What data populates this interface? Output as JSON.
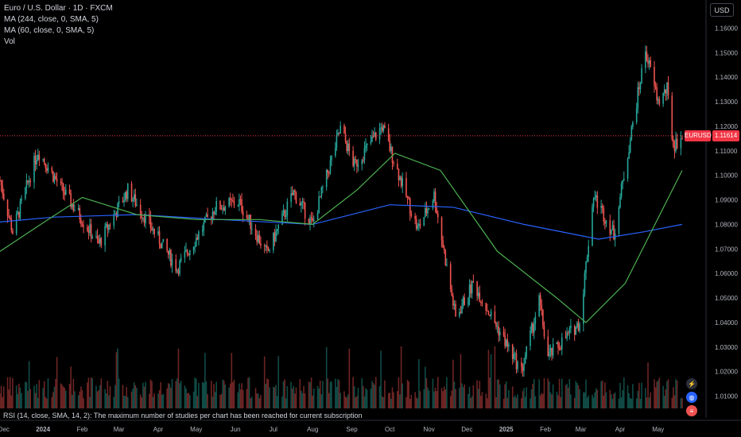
{
  "legend": {
    "title": "Euro / U.S. Dollar · 1D · FXCM",
    "ma244": "MA (244, close, 0, SMA, 5)",
    "ma60": "MA (60, close, 0, SMA, 5)",
    "vol": "Vol"
  },
  "currency_label": "USD",
  "symbol_tag": "EURUSD",
  "last_price_tag": "1.11614",
  "rsi_message": "RSI (14, close, SMA, 14, 2): The maximum number of studies per chart has been reached for current subscription",
  "colors": {
    "up": "#26a69a",
    "down": "#ef5350",
    "ma244": "#2962ff",
    "ma60": "#4caf50",
    "background": "#000000",
    "price_line": "#f23645"
  },
  "icons": [
    "lightning-icon",
    "globe-icon",
    "flag-icon"
  ],
  "chart_data": {
    "type": "candlestick",
    "title": "Euro / U.S. Dollar · 1D · FXCM",
    "y_axis": {
      "side": "right",
      "range": [
        1.005,
        1.165
      ],
      "ticks": [
        "1.16000",
        "1.15000",
        "1.14000",
        "1.13000",
        "1.12000",
        "1.11000",
        "1.10000",
        "1.09000",
        "1.08000",
        "1.07000",
        "1.06000",
        "1.05000",
        "1.04000",
        "1.03000",
        "1.02000",
        "1.01000"
      ]
    },
    "x_axis": {
      "range": [
        "2023-11-28",
        "2025-05-20"
      ],
      "ticks": [
        {
          "label": "Dec",
          "date": "2023-12-01"
        },
        {
          "label": "2024",
          "date": "2024-01-01"
        },
        {
          "label": "Feb",
          "date": "2024-02-01"
        },
        {
          "label": "Mar",
          "date": "2024-03-01"
        },
        {
          "label": "Apr",
          "date": "2024-04-01"
        },
        {
          "label": "May",
          "date": "2024-05-01"
        },
        {
          "label": "Jun",
          "date": "2024-06-01"
        },
        {
          "label": "Jul",
          "date": "2024-07-01"
        },
        {
          "label": "Aug",
          "date": "2024-08-01"
        },
        {
          "label": "Sep",
          "date": "2024-09-01"
        },
        {
          "label": "Oct",
          "date": "2024-10-01"
        },
        {
          "label": "Nov",
          "date": "2024-11-01"
        },
        {
          "label": "Dec",
          "date": "2024-12-01"
        },
        {
          "label": "2025",
          "date": "2025-01-01"
        },
        {
          "label": "Feb",
          "date": "2025-02-01"
        },
        {
          "label": "Mar",
          "date": "2025-03-01"
        },
        {
          "label": "Apr",
          "date": "2025-04-01"
        },
        {
          "label": "May",
          "date": "2025-05-01"
        }
      ]
    },
    "last_price": 1.11614,
    "close_path": [
      {
        "date": "2023-11-28",
        "close": 1.098
      },
      {
        "date": "2023-12-08",
        "close": 1.077
      },
      {
        "date": "2023-12-28",
        "close": 1.11
      },
      {
        "date": "2024-01-15",
        "close": 1.095
      },
      {
        "date": "2024-02-14",
        "close": 1.072
      },
      {
        "date": "2024-03-08",
        "close": 1.094
      },
      {
        "date": "2024-04-16",
        "close": 1.062
      },
      {
        "date": "2024-05-16",
        "close": 1.087
      },
      {
        "date": "2024-06-04",
        "close": 1.089
      },
      {
        "date": "2024-06-26",
        "close": 1.068
      },
      {
        "date": "2024-07-17",
        "close": 1.093
      },
      {
        "date": "2024-08-01",
        "close": 1.08
      },
      {
        "date": "2024-08-23",
        "close": 1.119
      },
      {
        "date": "2024-09-03",
        "close": 1.104
      },
      {
        "date": "2024-09-25",
        "close": 1.12
      },
      {
        "date": "2024-10-23",
        "close": 1.078
      },
      {
        "date": "2024-11-05",
        "close": 1.092
      },
      {
        "date": "2024-11-22",
        "close": 1.042
      },
      {
        "date": "2024-12-06",
        "close": 1.056
      },
      {
        "date": "2025-01-13",
        "close": 1.02
      },
      {
        "date": "2025-01-27",
        "close": 1.049
      },
      {
        "date": "2025-02-03",
        "close": 1.026
      },
      {
        "date": "2025-02-28",
        "close": 1.04
      },
      {
        "date": "2025-03-11",
        "close": 1.092
      },
      {
        "date": "2025-03-27",
        "close": 1.076
      },
      {
        "date": "2025-04-04",
        "close": 1.1
      },
      {
        "date": "2025-04-21",
        "close": 1.151
      },
      {
        "date": "2025-05-01",
        "close": 1.13
      },
      {
        "date": "2025-05-08",
        "close": 1.135
      },
      {
        "date": "2025-05-13",
        "close": 1.112
      },
      {
        "date": "2025-05-20",
        "close": 1.116
      }
    ],
    "series": [
      {
        "name": "MA (244, close, 0, SMA, 5)",
        "color": "#2962ff",
        "points": [
          {
            "date": "2023-11-28",
            "value": 1.081
          },
          {
            "date": "2024-01-10",
            "value": 1.083
          },
          {
            "date": "2024-03-15",
            "value": 1.084
          },
          {
            "date": "2024-05-20",
            "value": 1.082
          },
          {
            "date": "2024-08-01",
            "value": 1.08
          },
          {
            "date": "2024-10-01",
            "value": 1.088
          },
          {
            "date": "2024-11-20",
            "value": 1.087
          },
          {
            "date": "2025-01-15",
            "value": 1.08
          },
          {
            "date": "2025-03-15",
            "value": 1.074
          },
          {
            "date": "2025-04-20",
            "value": 1.077
          },
          {
            "date": "2025-05-20",
            "value": 1.08
          }
        ]
      },
      {
        "name": "MA (60, close, 0, SMA, 5)",
        "color": "#4caf50",
        "points": [
          {
            "date": "2023-11-28",
            "value": 1.069
          },
          {
            "date": "2024-01-05",
            "value": 1.082
          },
          {
            "date": "2024-02-01",
            "value": 1.091
          },
          {
            "date": "2024-03-15",
            "value": 1.084
          },
          {
            "date": "2024-05-01",
            "value": 1.082
          },
          {
            "date": "2024-06-20",
            "value": 1.082
          },
          {
            "date": "2024-08-01",
            "value": 1.08
          },
          {
            "date": "2024-09-05",
            "value": 1.094
          },
          {
            "date": "2024-10-05",
            "value": 1.109
          },
          {
            "date": "2024-11-10",
            "value": 1.102
          },
          {
            "date": "2024-12-25",
            "value": 1.069
          },
          {
            "date": "2025-02-10",
            "value": 1.05
          },
          {
            "date": "2025-03-05",
            "value": 1.04
          },
          {
            "date": "2025-04-05",
            "value": 1.056
          },
          {
            "date": "2025-05-20",
            "value": 1.102
          }
        ]
      }
    ],
    "volume": {
      "range": [
        0,
        1.0
      ],
      "note": "Vol"
    },
    "grid": false,
    "legend_position": "top-left"
  }
}
